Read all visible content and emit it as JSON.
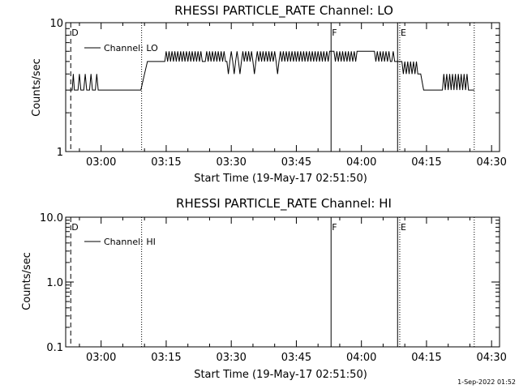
{
  "footer": {
    "date_stamp": "1-Sep-2022 01:52"
  },
  "chart_data": [
    {
      "type": "line",
      "title": "RHESSI PARTICLE_RATE Channel: LO",
      "xlabel": "Start Time (19-May-17 02:51:50)",
      "ylabel": "Counts/sec",
      "yscale": "log",
      "ylim": [
        1,
        10
      ],
      "xlim": [
        "02:51:50",
        "04:31:50"
      ],
      "ytick_values": [
        1,
        10
      ],
      "ytick_labels": [
        "1",
        "10"
      ],
      "xtick_values": [
        "03:00",
        "03:15",
        "03:30",
        "03:45",
        "04:00",
        "04:15",
        "04:30"
      ],
      "xtick_labels": [
        "03:00",
        "03:15",
        "03:30",
        "03:45",
        "04:00",
        "04:15",
        "04:30"
      ],
      "legend": {
        "label": "Channel: LO",
        "position": "top-left"
      },
      "markers": [
        {
          "label": "D",
          "time": "02:53:00",
          "style": "dashed"
        },
        {
          "label": "",
          "time": "03:09:20",
          "style": "dotted"
        },
        {
          "label": "F",
          "time": "03:53:00",
          "style": "solid"
        },
        {
          "label": "",
          "time": "04:08:20",
          "style": "solid"
        },
        {
          "label": "E",
          "time": "04:08:50",
          "style": "dotted"
        },
        {
          "label": "",
          "time": "04:26:00",
          "style": "dotted"
        }
      ],
      "series": [
        {
          "name": "Channel: LO",
          "points": [
            [
              "02:52:40",
              3
            ],
            [
              "02:53:20",
              3
            ],
            [
              "02:53:35",
              4
            ],
            [
              "02:53:50",
              3
            ],
            [
              "02:54:40",
              3
            ],
            [
              "02:55:00",
              4
            ],
            [
              "02:55:20",
              3
            ],
            [
              "02:56:00",
              3
            ],
            [
              "02:56:20",
              4
            ],
            [
              "02:56:40",
              3
            ],
            [
              "02:57:20",
              3
            ],
            [
              "02:57:40",
              4
            ],
            [
              "02:58:00",
              3
            ],
            [
              "02:58:40",
              3
            ],
            [
              "02:59:00",
              4
            ],
            [
              "02:59:20",
              3
            ],
            [
              "03:09:10",
              3
            ],
            [
              "03:10:00",
              4
            ],
            [
              "03:10:40",
              5
            ],
            [
              "03:14:40",
              5
            ],
            [
              "03:15:00",
              6
            ],
            [
              "03:15:20",
              5
            ],
            [
              "03:15:40",
              6
            ],
            [
              "03:16:00",
              5
            ],
            [
              "03:16:20",
              6
            ],
            [
              "03:16:40",
              5
            ],
            [
              "03:17:00",
              6
            ],
            [
              "03:17:20",
              5
            ],
            [
              "03:17:40",
              6
            ],
            [
              "03:18:00",
              5
            ],
            [
              "03:18:20",
              6
            ],
            [
              "03:18:40",
              5
            ],
            [
              "03:19:00",
              6
            ],
            [
              "03:19:20",
              5
            ],
            [
              "03:19:40",
              6
            ],
            [
              "03:20:00",
              5
            ],
            [
              "03:20:20",
              6
            ],
            [
              "03:20:40",
              5
            ],
            [
              "03:21:00",
              6
            ],
            [
              "03:21:20",
              5
            ],
            [
              "03:21:40",
              6
            ],
            [
              "03:22:00",
              5
            ],
            [
              "03:22:20",
              6
            ],
            [
              "03:22:40",
              5
            ],
            [
              "03:23:00",
              6
            ],
            [
              "03:23:20",
              5
            ],
            [
              "03:24:00",
              5
            ],
            [
              "03:24:20",
              6
            ],
            [
              "03:24:40",
              5
            ],
            [
              "03:25:00",
              6
            ],
            [
              "03:25:20",
              5
            ],
            [
              "03:25:40",
              6
            ],
            [
              "03:26:00",
              5
            ],
            [
              "03:26:20",
              6
            ],
            [
              "03:26:40",
              5
            ],
            [
              "03:27:00",
              6
            ],
            [
              "03:27:20",
              5
            ],
            [
              "03:27:40",
              6
            ],
            [
              "03:28:00",
              5
            ],
            [
              "03:28:20",
              6
            ],
            [
              "03:28:40",
              5
            ],
            [
              "03:29:00",
              5
            ],
            [
              "03:29:20",
              4
            ],
            [
              "03:29:40",
              5
            ],
            [
              "03:30:00",
              6
            ],
            [
              "03:30:20",
              5
            ],
            [
              "03:30:40",
              4
            ],
            [
              "03:31:00",
              5
            ],
            [
              "03:31:20",
              6
            ],
            [
              "03:31:40",
              5
            ],
            [
              "03:32:00",
              4
            ],
            [
              "03:32:20",
              5
            ],
            [
              "03:32:40",
              6
            ],
            [
              "03:33:00",
              5
            ],
            [
              "03:33:20",
              6
            ],
            [
              "03:33:40",
              5
            ],
            [
              "03:34:00",
              6
            ],
            [
              "03:34:20",
              5
            ],
            [
              "03:34:40",
              6
            ],
            [
              "03:35:00",
              5
            ],
            [
              "03:35:20",
              4
            ],
            [
              "03:35:40",
              5
            ],
            [
              "03:36:00",
              6
            ],
            [
              "03:36:20",
              5
            ],
            [
              "03:36:40",
              6
            ],
            [
              "03:37:00",
              5
            ],
            [
              "03:37:20",
              6
            ],
            [
              "03:37:40",
              5
            ],
            [
              "03:38:00",
              6
            ],
            [
              "03:38:20",
              5
            ],
            [
              "03:38:40",
              6
            ],
            [
              "03:39:00",
              5
            ],
            [
              "03:39:20",
              6
            ],
            [
              "03:39:40",
              5
            ],
            [
              "03:40:00",
              6
            ],
            [
              "03:40:20",
              5
            ],
            [
              "03:40:40",
              4
            ],
            [
              "03:41:00",
              5
            ],
            [
              "03:41:20",
              6
            ],
            [
              "03:41:40",
              5
            ],
            [
              "03:42:00",
              6
            ],
            [
              "03:42:20",
              5
            ],
            [
              "03:42:40",
              6
            ],
            [
              "03:43:00",
              5
            ],
            [
              "03:43:20",
              6
            ],
            [
              "03:43:40",
              5
            ],
            [
              "03:44:00",
              6
            ],
            [
              "03:44:20",
              5
            ],
            [
              "03:44:40",
              6
            ],
            [
              "03:45:00",
              5
            ],
            [
              "03:45:20",
              6
            ],
            [
              "03:45:40",
              5
            ],
            [
              "03:46:00",
              6
            ],
            [
              "03:46:20",
              5
            ],
            [
              "03:46:40",
              6
            ],
            [
              "03:47:00",
              5
            ],
            [
              "03:47:20",
              6
            ],
            [
              "03:47:40",
              5
            ],
            [
              "03:48:00",
              6
            ],
            [
              "03:48:20",
              5
            ],
            [
              "03:48:40",
              6
            ],
            [
              "03:49:00",
              5
            ],
            [
              "03:49:20",
              6
            ],
            [
              "03:49:40",
              5
            ],
            [
              "03:50:00",
              6
            ],
            [
              "03:50:20",
              5
            ],
            [
              "03:50:40",
              6
            ],
            [
              "03:51:00",
              5
            ],
            [
              "03:51:20",
              6
            ],
            [
              "03:51:40",
              5
            ],
            [
              "03:52:00",
              6
            ],
            [
              "03:52:20",
              5
            ],
            [
              "03:52:40",
              6
            ],
            [
              "03:53:40",
              6
            ],
            [
              "03:54:00",
              5
            ],
            [
              "03:54:20",
              6
            ],
            [
              "03:54:40",
              5
            ],
            [
              "03:55:00",
              6
            ],
            [
              "03:55:20",
              5
            ],
            [
              "03:55:40",
              6
            ],
            [
              "03:56:00",
              5
            ],
            [
              "03:56:20",
              6
            ],
            [
              "03:56:40",
              5
            ],
            [
              "03:57:00",
              6
            ],
            [
              "03:57:20",
              5
            ],
            [
              "03:57:40",
              6
            ],
            [
              "03:58:00",
              5
            ],
            [
              "03:58:20",
              6
            ],
            [
              "03:58:40",
              5
            ],
            [
              "03:59:00",
              6
            ],
            [
              "03:59:20",
              6
            ],
            [
              "04:03:00",
              6
            ],
            [
              "04:03:20",
              5
            ],
            [
              "04:03:40",
              6
            ],
            [
              "04:04:00",
              5
            ],
            [
              "04:04:20",
              6
            ],
            [
              "04:04:40",
              5
            ],
            [
              "04:05:00",
              6
            ],
            [
              "04:05:20",
              5
            ],
            [
              "04:05:40",
              6
            ],
            [
              "04:06:00",
              5
            ],
            [
              "04:06:20",
              6
            ],
            [
              "04:06:40",
              5
            ],
            [
              "04:07:00",
              5
            ],
            [
              "04:07:20",
              6
            ],
            [
              "04:07:40",
              5
            ],
            [
              "04:08:10",
              5
            ],
            [
              "04:09:20",
              5
            ],
            [
              "04:09:40",
              4
            ],
            [
              "04:10:00",
              5
            ],
            [
              "04:10:20",
              4
            ],
            [
              "04:10:40",
              5
            ],
            [
              "04:11:00",
              4
            ],
            [
              "04:11:20",
              5
            ],
            [
              "04:11:40",
              4
            ],
            [
              "04:12:00",
              5
            ],
            [
              "04:12:20",
              4
            ],
            [
              "04:12:40",
              5
            ],
            [
              "04:13:00",
              4
            ],
            [
              "04:13:40",
              4
            ],
            [
              "04:14:20",
              3
            ],
            [
              "04:18:40",
              3
            ],
            [
              "04:19:00",
              4
            ],
            [
              "04:19:20",
              3
            ],
            [
              "04:19:40",
              4
            ],
            [
              "04:20:00",
              3
            ],
            [
              "04:20:20",
              4
            ],
            [
              "04:20:40",
              3
            ],
            [
              "04:21:00",
              4
            ],
            [
              "04:21:20",
              3
            ],
            [
              "04:21:40",
              4
            ],
            [
              "04:22:00",
              3
            ],
            [
              "04:22:20",
              4
            ],
            [
              "04:22:40",
              3
            ],
            [
              "04:23:00",
              4
            ],
            [
              "04:23:20",
              3
            ],
            [
              "04:23:40",
              4
            ],
            [
              "04:24:00",
              3
            ],
            [
              "04:24:20",
              4
            ],
            [
              "04:24:40",
              3
            ],
            [
              "04:26:00",
              3
            ]
          ]
        }
      ]
    },
    {
      "type": "line",
      "title": "RHESSI PARTICLE_RATE Channel: HI",
      "xlabel": "Start Time (19-May-17 02:51:50)",
      "ylabel": "Counts/sec",
      "yscale": "log",
      "ylim": [
        0.1,
        10
      ],
      "xlim": [
        "02:51:50",
        "04:31:50"
      ],
      "ytick_values": [
        0.1,
        1,
        10
      ],
      "ytick_labels": [
        "0.1",
        "1.0",
        "10.0"
      ],
      "xtick_values": [
        "03:00",
        "03:15",
        "03:30",
        "03:45",
        "04:00",
        "04:15",
        "04:30"
      ],
      "xtick_labels": [
        "03:00",
        "03:15",
        "03:30",
        "03:45",
        "04:00",
        "04:15",
        "04:30"
      ],
      "legend": {
        "label": "Channel: HI",
        "position": "top-left"
      },
      "markers": [
        {
          "label": "D",
          "time": "02:53:00",
          "style": "dashed"
        },
        {
          "label": "",
          "time": "03:09:20",
          "style": "dotted"
        },
        {
          "label": "F",
          "time": "03:53:00",
          "style": "solid"
        },
        {
          "label": "",
          "time": "04:08:20",
          "style": "solid"
        },
        {
          "label": "E",
          "time": "04:08:50",
          "style": "dotted"
        },
        {
          "label": "",
          "time": "04:26:00",
          "style": "dotted"
        }
      ],
      "series": [
        {
          "name": "Channel: HI",
          "points": []
        }
      ]
    }
  ]
}
